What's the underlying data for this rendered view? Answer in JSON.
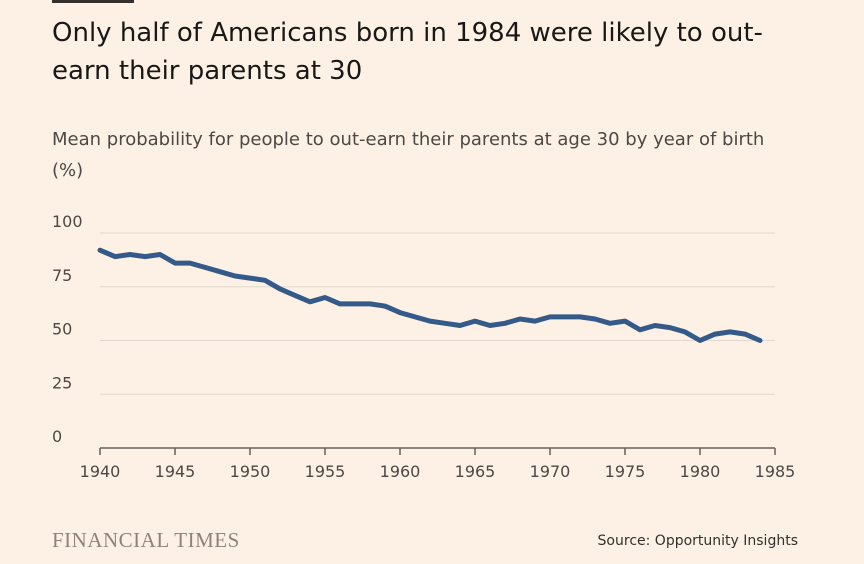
{
  "header": {
    "title": "Only half of Americans born in 1984 were likely to out-earn their parents at 30",
    "subtitle": "Mean probability for people to out-earn their parents at age 30 by year of birth (%)"
  },
  "footer": {
    "logo_text": "FINANCIAL TIMES",
    "source": "Source: Opportunity Insights"
  },
  "colors": {
    "background": "#fdf1e5",
    "line": "#345a8a",
    "grid": "#e0d8ce",
    "axis": "#66605c"
  },
  "chart_data": {
    "type": "line",
    "title": "Only half of Americans born in 1984 were likely to out-earn their parents at 30",
    "ylabel": "Mean probability for people to out-earn their parents at age 30 by year of birth (%)",
    "xlabel": "",
    "xlim": [
      1940,
      1985
    ],
    "ylim": [
      0,
      100
    ],
    "x_ticks": [
      1940,
      1945,
      1950,
      1955,
      1960,
      1965,
      1970,
      1975,
      1980,
      1985
    ],
    "y_ticks": [
      0,
      25,
      50,
      75,
      100
    ],
    "grid": true,
    "x": [
      1940,
      1941,
      1942,
      1943,
      1944,
      1945,
      1946,
      1947,
      1948,
      1949,
      1950,
      1951,
      1952,
      1953,
      1954,
      1955,
      1956,
      1957,
      1958,
      1959,
      1960,
      1961,
      1962,
      1963,
      1964,
      1965,
      1966,
      1967,
      1968,
      1969,
      1970,
      1971,
      1972,
      1973,
      1974,
      1975,
      1976,
      1977,
      1978,
      1979,
      1980,
      1981,
      1982,
      1983,
      1984
    ],
    "series": [
      {
        "values": [
          92,
          89,
          90,
          89,
          90,
          86,
          86,
          84,
          82,
          80,
          79,
          78,
          74,
          71,
          68,
          70,
          67,
          67,
          67,
          66,
          63,
          61,
          59,
          58,
          57,
          59,
          57,
          58,
          60,
          59,
          61,
          61,
          61,
          60,
          58,
          59,
          55,
          57,
          56,
          54,
          50,
          53,
          54,
          53,
          50
        ]
      }
    ]
  }
}
